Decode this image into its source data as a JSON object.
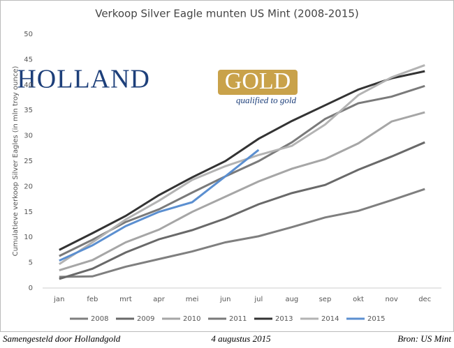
{
  "chart_data": {
    "type": "line",
    "title": "Verkoop Silver Eagle munten US Mint (2008-2015)",
    "y_label": "Cumulatieve verkoop Silver Eagles (in mln troy ounce)",
    "logo": {
      "name_1": "HOLLAND",
      "name_2": "GOLD",
      "tagline": "qualified to gold"
    },
    "footer": {
      "left": "Samengesteld door Hollandgold",
      "center": "4 augustus 2015",
      "right": "Bron: US Mint"
    },
    "categories": [
      "jan",
      "feb",
      "mrt",
      "apr",
      "mei",
      "jun",
      "jul",
      "aug",
      "sep",
      "okt",
      "nov",
      "dec"
    ],
    "ylim": [
      0,
      50
    ],
    "yticks": [
      0,
      5,
      10,
      15,
      20,
      25,
      30,
      35,
      40,
      45,
      50
    ],
    "grid": false,
    "legend": "bottom",
    "series": [
      {
        "name": "2008",
        "color": "#7f7f7f",
        "values": [
          2.2,
          2.3,
          4.2,
          5.7,
          7.2,
          9.0,
          10.2,
          12.0,
          13.9,
          15.2,
          17.3,
          19.5
        ]
      },
      {
        "name": "2009",
        "color": "#696969",
        "values": [
          1.8,
          3.8,
          7.0,
          9.6,
          11.4,
          13.7,
          16.5,
          18.7,
          20.3,
          23.3,
          25.9,
          28.7
        ]
      },
      {
        "name": "2010",
        "color": "#a6a6a6",
        "values": [
          3.5,
          5.5,
          9.0,
          11.5,
          15.0,
          18.0,
          21.0,
          23.5,
          25.4,
          28.5,
          32.8,
          34.6
        ]
      },
      {
        "name": "2011",
        "color": "#7a7a7a",
        "values": [
          6.3,
          9.5,
          13.0,
          15.5,
          18.8,
          22.0,
          25.0,
          28.7,
          33.3,
          36.4,
          37.7,
          39.8
        ]
      },
      {
        "name": "2013",
        "color": "#333333",
        "values": [
          7.5,
          10.8,
          14.2,
          18.3,
          21.8,
          25.0,
          29.4,
          32.9,
          36.0,
          39.1,
          41.3,
          42.7
        ]
      },
      {
        "name": "2014",
        "color": "#b3b3b3",
        "values": [
          4.7,
          9.0,
          13.5,
          17.2,
          21.3,
          24.0,
          26.2,
          28.0,
          32.2,
          38.0,
          41.5,
          43.9
        ]
      },
      {
        "name": "2015",
        "color": "#5b8fd0",
        "values": [
          5.4,
          8.4,
          12.2,
          15.0,
          16.9,
          22.0,
          27.2,
          null,
          null,
          null,
          null,
          null
        ]
      }
    ]
  }
}
